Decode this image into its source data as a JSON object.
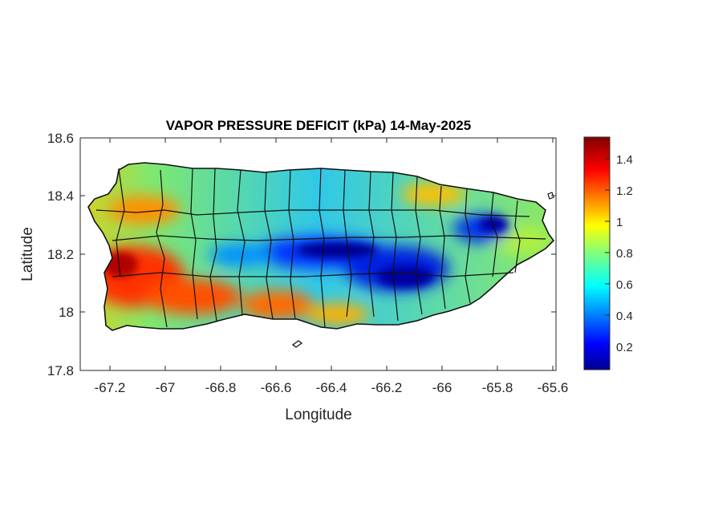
{
  "map": {
    "title": "VAPOR PRESSURE DEFICIT (kPa) 14-May-2025",
    "xlabel": "Longitude",
    "ylabel": "Latitude",
    "x_ticks": [
      "-67.2",
      "-67",
      "-66.8",
      "-66.6",
      "-66.4",
      "-66.2",
      "-66",
      "-65.8",
      "-65.6"
    ],
    "y_ticks": [
      "18.6",
      "18.4",
      "18.2",
      "18",
      "17.8"
    ],
    "lon_range": [
      -67.3,
      -65.58
    ],
    "lat_range": [
      17.8,
      18.6
    ],
    "colormap": "jet",
    "colors": {
      "low": "#00008f",
      "mid": "#ffff00",
      "high": "#800000",
      "border": "#111111",
      "axis": "#262626"
    }
  },
  "colorbar": {
    "ticks": [
      "1.4",
      "1.2",
      "1",
      "0.8",
      "0.6",
      "0.4",
      "0.2"
    ],
    "range": [
      0.05,
      1.55
    ]
  }
}
